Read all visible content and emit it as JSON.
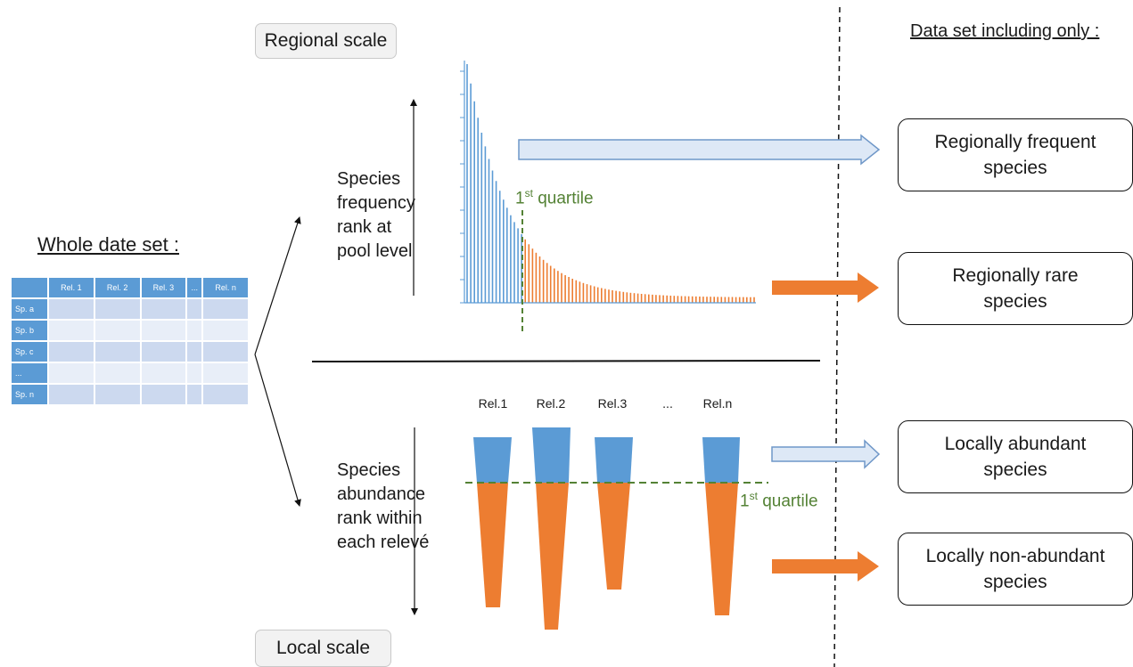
{
  "regional_scale": "Regional scale",
  "local_scale": "Local scale",
  "whole_dataset": "Whole date set :",
  "dataset_including": "Data set including only :",
  "frequency_label": [
    "Species",
    "frequency",
    "rank at",
    "pool level"
  ],
  "abundance_label": [
    "Species",
    "abundance",
    "rank within",
    "each relevé"
  ],
  "quartile_text": "1",
  "quartile_sup": "st",
  "quartile_word": " quartile",
  "table": {
    "columns": [
      "",
      "Rel. 1",
      "Rel. 2",
      "Rel. 3",
      "...",
      "Rel. n"
    ],
    "rows": [
      "Sp. a",
      "Sp. b",
      "Sp. c",
      "...",
      "Sp. n"
    ]
  },
  "releves": [
    "Rel.1",
    "Rel.2",
    "Rel.3",
    "...",
    "Rel.n"
  ],
  "outcomes": {
    "regionally_frequent": [
      "Regionally frequent",
      "species"
    ],
    "regionally_rare": [
      "Regionally rare",
      "species"
    ],
    "locally_abundant": [
      "Locally abundant",
      "species"
    ],
    "locally_non_abundant": [
      "Locally non-abundant",
      "species"
    ]
  },
  "colors": {
    "frequent": "#5b9bd5",
    "rare": "#ed7d31",
    "quartile": "#548235",
    "arrow_light_fill": "#dde8f6",
    "arrow_light_stroke": "#6f97c8"
  },
  "chart_data": {
    "type": "bar",
    "description_series": [
      {
        "name": "frequent",
        "color": "#5b9bd5"
      },
      {
        "name": "rare",
        "color": "#ed7d31"
      }
    ],
    "quartile_fraction": 0.25,
    "decay": "exponential"
  }
}
